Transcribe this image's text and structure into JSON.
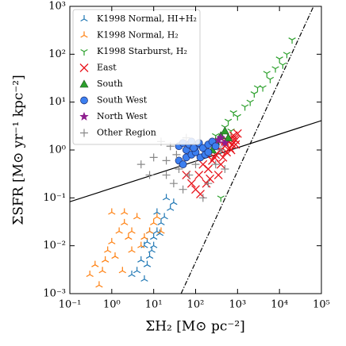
{
  "chart_data": {
    "type": "scatter",
    "x_label": "ΣH₂ [M⊙ pc⁻²]",
    "y_label": "ΣSFR [M⊙ yr⁻¹ kpc⁻²]",
    "xscale": "log",
    "yscale": "log",
    "xlim": [
      0.1,
      100000
    ],
    "ylim": [
      0.001,
      1000
    ],
    "xticks": [
      {
        "value": 0.1,
        "label": "10⁻¹"
      },
      {
        "value": 1,
        "label": "10⁰"
      },
      {
        "value": 10,
        "label": "10¹"
      },
      {
        "value": 100,
        "label": "10²"
      },
      {
        "value": 1000,
        "label": "10³"
      },
      {
        "value": 10000,
        "label": "10⁴"
      },
      {
        "value": 100000,
        "label": "10⁵"
      }
    ],
    "yticks": [
      {
        "value": 0.001,
        "label": "10⁻³"
      },
      {
        "value": 0.01,
        "label": "10⁻²"
      },
      {
        "value": 0.1,
        "label": "10⁻¹"
      },
      {
        "value": 1,
        "label": "10⁰"
      },
      {
        "value": 10,
        "label": "10¹"
      },
      {
        "value": 100,
        "label": "10²"
      },
      {
        "value": 1000,
        "label": "10³"
      }
    ],
    "legend": "upper left",
    "reference_lines": [
      {
        "style": "solid",
        "x": [
          0.1,
          100000
        ],
        "values": [
          0.083,
          4.1
        ]
      },
      {
        "style": "dashdot",
        "x": [
          45,
          65000
        ],
        "values": [
          0.001,
          1000
        ]
      }
    ],
    "series": [
      {
        "name": "K1998 Normal, HI+H₂",
        "marker": "tri_down",
        "color": "#1f77b4",
        "x": [
          20,
          12,
          15,
          8,
          10,
          6,
          9,
          5,
          7,
          4,
          6,
          12,
          18,
          25,
          10,
          14,
          3,
          8,
          30,
          7
        ],
        "values": [
          0.1,
          0.05,
          0.03,
          0.02,
          0.015,
          0.01,
          0.008,
          0.005,
          0.004,
          0.003,
          0.002,
          0.02,
          0.04,
          0.06,
          0.01,
          0.018,
          0.0025,
          0.006,
          0.08,
          0.012
        ]
      },
      {
        "name": "K1998 Normal, H₂",
        "marker": "tri_down",
        "color": "#ff7f0e",
        "x": [
          1,
          2,
          0.4,
          0.6,
          1.5,
          3,
          0.8,
          1.2,
          5,
          2.5,
          0.3,
          4,
          1,
          8,
          10,
          0.7,
          3,
          6,
          2,
          12,
          0.5,
          1.8,
          15
        ],
        "values": [
          0.05,
          0.03,
          0.004,
          0.003,
          0.02,
          0.02,
          0.008,
          0.006,
          0.01,
          0.015,
          0.0025,
          0.04,
          0.012,
          0.02,
          0.03,
          0.005,
          0.008,
          0.015,
          0.05,
          0.04,
          0.0015,
          0.003,
          0.02
        ]
      },
      {
        "name": "K1998 Starburst, H₂",
        "marker": "tri_up",
        "color": "#2ca02c",
        "x": [
          300,
          500,
          800,
          1000,
          2000,
          3000,
          5000,
          8000,
          10000,
          20000,
          15000,
          6000,
          400,
          700,
          2500,
          12000,
          600,
          4000,
          1500
        ],
        "values": [
          2,
          3,
          6,
          5,
          10,
          20,
          40,
          50,
          80,
          200,
          100,
          30,
          0.1,
          2.5,
          15,
          60,
          4,
          20,
          8
        ]
      },
      {
        "name": "East",
        "marker": "x",
        "color": "#e8141c",
        "x": [
          60,
          80,
          100,
          120,
          150,
          200,
          250,
          300,
          400,
          500,
          600,
          700,
          800,
          900,
          350,
          450,
          550,
          650,
          750,
          850,
          180,
          220,
          130,
          400,
          300,
          500,
          700,
          1000,
          900,
          280
        ],
        "values": [
          0.3,
          0.2,
          0.15,
          0.3,
          0.5,
          0.4,
          0.6,
          0.8,
          1,
          1.2,
          1.5,
          1.8,
          2,
          1.6,
          0.3,
          0.7,
          0.9,
          1.1,
          1.3,
          1.7,
          0.2,
          0.25,
          0.12,
          0.5,
          1.2,
          1.5,
          1,
          2.2,
          1.3,
          0.7
        ]
      },
      {
        "name": "South",
        "marker": "triangle",
        "color": "#2ca02c",
        "x": [
          300,
          400,
          500,
          600,
          250
        ],
        "values": [
          1.5,
          2,
          2.5,
          1.8,
          1
        ]
      },
      {
        "name": "South West",
        "marker": "circle",
        "color": "#3c7ff0",
        "x": [
          40,
          50,
          60,
          70,
          80,
          100,
          120,
          150,
          200,
          250,
          300,
          60,
          80,
          100,
          130,
          170,
          40,
          50,
          200,
          90
        ],
        "values": [
          1.2,
          1.4,
          1.0,
          1.3,
          1.5,
          1.2,
          1.4,
          1.1,
          1.3,
          1.5,
          1.2,
          0.7,
          0.8,
          0.9,
          0.7,
          0.8,
          0.6,
          0.5,
          0.9,
          1.1
        ]
      },
      {
        "name": "North West",
        "marker": "star",
        "color": "#8e1e8e",
        "x": [
          400,
          500,
          350
        ],
        "values": [
          1.8,
          1.4,
          1.6
        ]
      },
      {
        "name": "Other Region",
        "marker": "plus",
        "color": "#888888",
        "x": [
          5,
          10,
          20,
          30,
          40,
          15,
          25,
          50,
          70,
          100,
          200,
          300,
          400,
          20,
          60,
          150,
          8,
          35,
          500
        ],
        "values": [
          0.5,
          0.7,
          0.3,
          0.2,
          0.4,
          1.5,
          1.2,
          0.15,
          0.3,
          0.5,
          0.2,
          0.5,
          1,
          0.6,
          1.8,
          0.1,
          0.3,
          0.8,
          0.4
        ]
      }
    ]
  }
}
